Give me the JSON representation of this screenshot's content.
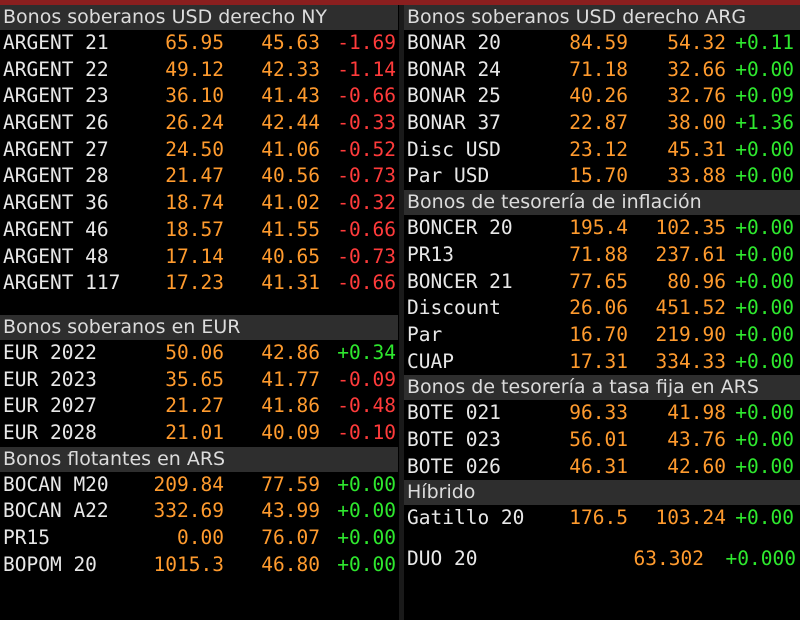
{
  "left": {
    "sections": [
      {
        "header": "Bonos soberanos USD derecho NY",
        "rows": [
          {
            "name": "ARGENT 21",
            "price": "65.95",
            "yield": "45.63",
            "change": "-1.69"
          },
          {
            "name": "ARGENT 22",
            "price": "49.12",
            "yield": "42.33",
            "change": "-1.14"
          },
          {
            "name": "ARGENT 23",
            "price": "36.10",
            "yield": "41.43",
            "change": "-0.66"
          },
          {
            "name": "ARGENT 26",
            "price": "26.24",
            "yield": "42.44",
            "change": "-0.33"
          },
          {
            "name": "ARGENT 27",
            "price": "24.50",
            "yield": "41.06",
            "change": "-0.52"
          },
          {
            "name": "ARGENT 28",
            "price": "21.47",
            "yield": "40.56",
            "change": "-0.73"
          },
          {
            "name": "ARGENT 36",
            "price": "18.74",
            "yield": "41.02",
            "change": "-0.32"
          },
          {
            "name": "ARGENT 46",
            "price": "18.57",
            "yield": "41.55",
            "change": "-0.66"
          },
          {
            "name": "ARGENT 48",
            "price": "17.14",
            "yield": "40.65",
            "change": "-0.73"
          },
          {
            "name": "ARGENT 117",
            "price": "17.23",
            "yield": "41.31",
            "change": "-0.66"
          }
        ]
      },
      {
        "header": "Bonos soberanos en EUR",
        "rows": [
          {
            "name": "EUR 2022",
            "price": "50.06",
            "yield": "42.86",
            "change": "+0.34"
          },
          {
            "name": "EUR 2023",
            "price": "35.65",
            "yield": "41.77",
            "change": "-0.09"
          },
          {
            "name": "EUR 2027",
            "price": "21.27",
            "yield": "41.86",
            "change": "-0.48"
          },
          {
            "name": "EUR 2028",
            "price": "21.01",
            "yield": "40.09",
            "change": "-0.10"
          }
        ]
      },
      {
        "header": "Bonos flotantes en ARS",
        "rows": [
          {
            "name": "BOCAN M20",
            "price": "209.84",
            "yield": "77.59",
            "change": "+0.00"
          },
          {
            "name": "BOCAN A22",
            "price": "332.69",
            "yield": "43.99",
            "change": "+0.00"
          },
          {
            "name": "PR15",
            "price": "0.00",
            "yield": "76.07",
            "change": "+0.00"
          },
          {
            "name": "BOPOM 20",
            "price": "1015.3",
            "yield": "46.80",
            "change": "+0.00"
          }
        ]
      }
    ]
  },
  "right": {
    "sections": [
      {
        "header": "Bonos soberanos USD derecho ARG",
        "rows": [
          {
            "name": "BONAR 20",
            "price": "84.59",
            "yield": "54.32",
            "change": "+0.11"
          },
          {
            "name": "BONAR 24",
            "price": "71.18",
            "yield": "32.66",
            "change": "+0.00"
          },
          {
            "name": "BONAR 25",
            "price": "40.26",
            "yield": "32.76",
            "change": "+0.09"
          },
          {
            "name": "BONAR 37",
            "price": "22.87",
            "yield": "38.00",
            "change": "+1.36"
          },
          {
            "name": "Disc USD",
            "price": "23.12",
            "yield": "45.31",
            "change": "+0.00"
          },
          {
            "name": "Par USD",
            "price": "15.70",
            "yield": "33.88",
            "change": "+0.00"
          }
        ]
      },
      {
        "header": "Bonos de tesorería de inflación",
        "rows": [
          {
            "name": "BONCER 20",
            "price": "195.4",
            "yield": "102.35",
            "change": "+0.00"
          },
          {
            "name": "PR13",
            "price": "71.88",
            "yield": "237.61",
            "change": "+0.00"
          },
          {
            "name": "BONCER 21",
            "price": "77.65",
            "yield": "80.96",
            "change": "+0.00"
          },
          {
            "name": "Discount",
            "price": "26.06",
            "yield": "451.52",
            "change": "+0.00"
          },
          {
            "name": "Par",
            "price": "16.70",
            "yield": "219.90",
            "change": "+0.00"
          },
          {
            "name": "CUAP",
            "price": "17.31",
            "yield": "334.33",
            "change": "+0.00"
          }
        ]
      },
      {
        "header": "Bonos de tesorería a tasa fija en ARS",
        "rows": [
          {
            "name": "BOTE 021",
            "price": "96.33",
            "yield": "41.98",
            "change": "+0.00"
          },
          {
            "name": "BOTE 023",
            "price": "56.01",
            "yield": "43.76",
            "change": "+0.00"
          },
          {
            "name": "BOTE 026",
            "price": "46.31",
            "yield": "42.60",
            "change": "+0.00"
          }
        ]
      },
      {
        "header": "Híbrido",
        "rows": [
          {
            "name": "Gatillo 20",
            "price": "176.5",
            "yield": "103.24",
            "change": "+0.00"
          }
        ]
      }
    ],
    "footer_row": {
      "name": "DUO 20",
      "yield": "63.302",
      "change": "+0.000"
    }
  },
  "colors": {
    "name": "#e8e8e8",
    "price": "#ff9b2e",
    "negative": "#ff3b3b",
    "positive": "#2ee82e",
    "header_bg": "#2e2e2e",
    "top_bar": "#8a1f1f"
  }
}
